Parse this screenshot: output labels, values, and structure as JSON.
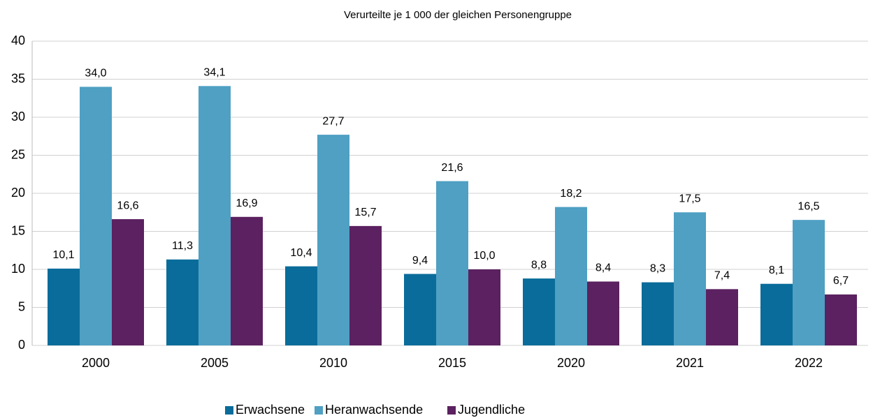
{
  "chart_data": {
    "type": "bar",
    "title": "Verurteilte je 1 000 der gleichen Personengruppe",
    "categories": [
      "2000",
      "2005",
      "2010",
      "2015",
      "2020",
      "2021",
      "2022"
    ],
    "series": [
      {
        "name": "Erwachsene",
        "color": "#0a6c9a",
        "values": [
          10.1,
          11.3,
          10.4,
          9.4,
          8.8,
          8.3,
          8.1
        ],
        "value_labels": [
          "10,1",
          "11,3",
          "10,4",
          "9,4",
          "8,8",
          "8,3",
          "8,1"
        ]
      },
      {
        "name": "Heranwachsende",
        "color": "#4fa0c3",
        "values": [
          34.0,
          34.1,
          27.7,
          21.6,
          18.2,
          17.5,
          16.5
        ],
        "value_labels": [
          "34,0",
          "34,1",
          "27,7",
          "21,6",
          "18,2",
          "17,5",
          "16,5"
        ]
      },
      {
        "name": "Jugendliche",
        "color": "#5b2160",
        "values": [
          16.6,
          16.9,
          15.7,
          10.0,
          8.4,
          7.4,
          6.7
        ],
        "value_labels": [
          "16,6",
          "16,9",
          "15,7",
          "10,0",
          "8,4",
          "7,4",
          "6,7"
        ]
      }
    ],
    "ylim": [
      0,
      40
    ],
    "yticks": [
      0,
      5,
      10,
      15,
      20,
      25,
      30,
      35,
      40
    ],
    "grid": true,
    "legend": "bottom"
  }
}
